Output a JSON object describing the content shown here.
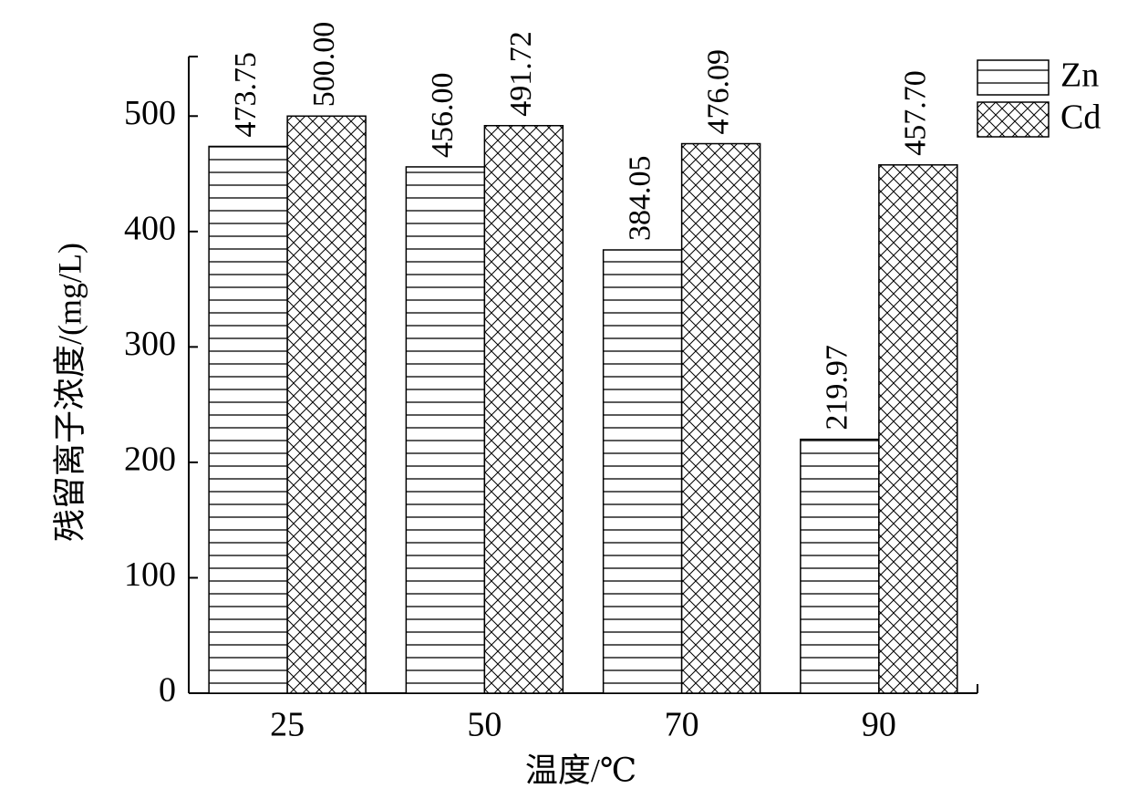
{
  "chart_data": {
    "type": "bar",
    "x_label": "温度/℃",
    "y_label": "残留离子浓度/(mg/L)",
    "categories": [
      "25",
      "50",
      "70",
      "90"
    ],
    "series": [
      {
        "name": "Zn",
        "color": "#000000",
        "pattern": "horizontal",
        "values": [
          473.75,
          456.0,
          384.05,
          219.97
        ],
        "value_labels": [
          "473.75",
          "456.00",
          "384.05",
          "219.97"
        ]
      },
      {
        "name": "Cd",
        "color": "#000000",
        "pattern": "crosshatch",
        "values": [
          500.0,
          491.72,
          476.09,
          457.7
        ],
        "value_labels": [
          "500.00",
          "491.72",
          "476.09",
          "457.70"
        ]
      }
    ],
    "ylim": [
      0,
      550
    ],
    "yticks": [
      0,
      100,
      200,
      300,
      400,
      500
    ],
    "grid": false,
    "legend": "upper right"
  }
}
